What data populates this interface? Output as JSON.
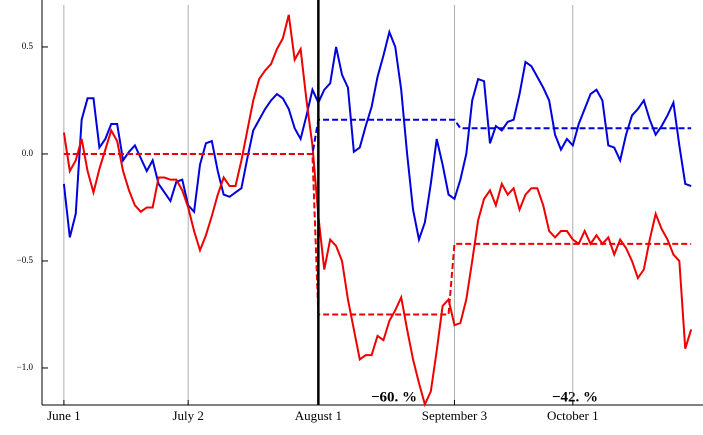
{
  "chart_data": {
    "type": "line",
    "x": [
      0,
      1,
      2,
      3,
      4,
      5,
      6,
      7,
      8,
      9,
      10,
      11,
      12,
      13,
      14,
      15,
      16,
      17,
      18,
      19,
      20,
      21,
      22,
      23,
      24,
      25,
      26,
      27,
      28,
      29,
      30,
      31,
      32,
      33,
      34,
      35,
      36,
      37,
      38,
      39,
      40,
      41,
      42,
      43,
      44,
      45,
      46,
      47,
      48,
      49,
      50,
      51,
      52,
      53,
      54,
      55,
      56,
      57,
      58,
      59,
      60,
      61,
      62,
      63,
      64,
      65,
      66,
      67,
      68,
      69,
      70,
      71,
      72,
      73,
      74,
      75,
      76,
      77,
      78,
      79,
      80,
      81,
      82,
      83,
      84,
      85,
      86,
      87,
      88,
      89,
      90,
      91,
      92,
      93,
      94,
      95,
      96,
      97,
      98,
      99,
      100,
      101,
      102,
      103,
      104,
      105,
      106
    ],
    "series": [
      {
        "color": "#0000dd",
        "values": [
          -0.14,
          -0.39,
          -0.28,
          0.16,
          0.26,
          0.26,
          0.03,
          0.07,
          0.14,
          0.14,
          -0.03,
          0.01,
          0.04,
          -0.02,
          -0.08,
          -0.03,
          -0.14,
          -0.18,
          -0.22,
          -0.13,
          -0.12,
          -0.24,
          -0.27,
          -0.05,
          0.05,
          0.06,
          -0.08,
          -0.19,
          -0.2,
          -0.18,
          -0.16,
          -0.02,
          0.11,
          0.16,
          0.21,
          0.25,
          0.28,
          0.26,
          0.21,
          0.12,
          0.07,
          0.18,
          0.3,
          0.24,
          0.3,
          0.33,
          0.5,
          0.37,
          0.31,
          0.01,
          0.03,
          0.13,
          0.22,
          0.36,
          0.46,
          0.57,
          0.5,
          0.3,
          0,
          -0.26,
          -0.4,
          -0.32,
          -0.14,
          0.07,
          -0.05,
          -0.19,
          -0.21,
          -0.12,
          0,
          0.25,
          0.35,
          0.34,
          0.05,
          0.13,
          0.11,
          0.15,
          0.16,
          0.28,
          0.43,
          0.41,
          0.36,
          0.31,
          0.25,
          0.09,
          0.02,
          0.07,
          0.04,
          0.14,
          0.21,
          0.28,
          0.3,
          0.25,
          0.04,
          0.03,
          -0.03,
          0.09,
          0.18,
          0.21,
          0.25,
          0.16,
          0.09,
          0.13,
          0.18,
          0.24,
          0.04,
          -0.14,
          -0.15
        ]
      },
      {
        "color": "#ee0000",
        "values": [
          0.1,
          -0.08,
          -0.03,
          0.07,
          -0.08,
          -0.18,
          -0.07,
          0.02,
          0.11,
          0.06,
          -0.08,
          -0.17,
          -0.24,
          -0.27,
          -0.25,
          -0.25,
          -0.11,
          -0.11,
          -0.12,
          -0.12,
          -0.17,
          -0.25,
          -0.36,
          -0.45,
          -0.38,
          -0.29,
          -0.19,
          -0.11,
          -0.15,
          -0.15,
          -0.03,
          0.11,
          0.25,
          0.35,
          0.39,
          0.42,
          0.49,
          0.54,
          0.65,
          0.44,
          0.49,
          0.25,
          0.04,
          -0.29,
          -0.54,
          -0.4,
          -0.43,
          -0.5,
          -0.68,
          -0.82,
          -0.96,
          -0.94,
          -0.94,
          -0.85,
          -0.87,
          -0.78,
          -0.73,
          -0.67,
          -0.82,
          -0.96,
          -1.07,
          -1.17,
          -1.11,
          -0.92,
          -0.71,
          -0.68,
          -0.8,
          -0.79,
          -0.68,
          -0.5,
          -0.31,
          -0.21,
          -0.17,
          -0.24,
          -0.14,
          -0.19,
          -0.16,
          -0.26,
          -0.19,
          -0.16,
          -0.16,
          -0.24,
          -0.36,
          -0.39,
          -0.36,
          -0.36,
          -0.4,
          -0.42,
          -0.36,
          -0.42,
          -0.38,
          -0.42,
          -0.39,
          -0.47,
          -0.4,
          -0.44,
          -0.5,
          -0.58,
          -0.54,
          -0.4,
          -0.28,
          -0.35,
          -0.4,
          -0.47,
          -0.5,
          -0.91,
          -0.82
        ]
      },
      {
        "color": "#0000dd",
        "dashed": true,
        "x": [
          0,
          42,
          43,
          66,
          67,
          106
        ],
        "values": [
          0,
          0,
          0.16,
          0.16,
          0.12,
          0.12
        ]
      },
      {
        "color": "#ee0000",
        "dashed": true,
        "x": [
          0,
          42,
          43,
          65,
          66,
          106
        ],
        "values": [
          0,
          0,
          -0.75,
          -0.75,
          -0.42,
          -0.42
        ]
      }
    ],
    "event_x": 43,
    "xlim": [
      -3.7,
      108
    ],
    "ylim": [
      -1.173,
      0.696
    ],
    "xticks": [
      {
        "value": 0,
        "label": "June 1"
      },
      {
        "value": 21,
        "label": "July 2"
      },
      {
        "value": 43,
        "label": "August 1"
      },
      {
        "value": 66,
        "label": "September 3"
      },
      {
        "value": 86,
        "label": "October 1"
      }
    ],
    "yticks": [
      {
        "value": 0.5,
        "label": "0.5"
      },
      {
        "value": 0,
        "label": "0.0"
      },
      {
        "value": -0.5,
        "label": "−0.5"
      },
      {
        "value": -1,
        "label": "−1.0"
      }
    ],
    "grid": true,
    "annotations": [
      "−60. %",
      "−42. %"
    ]
  }
}
